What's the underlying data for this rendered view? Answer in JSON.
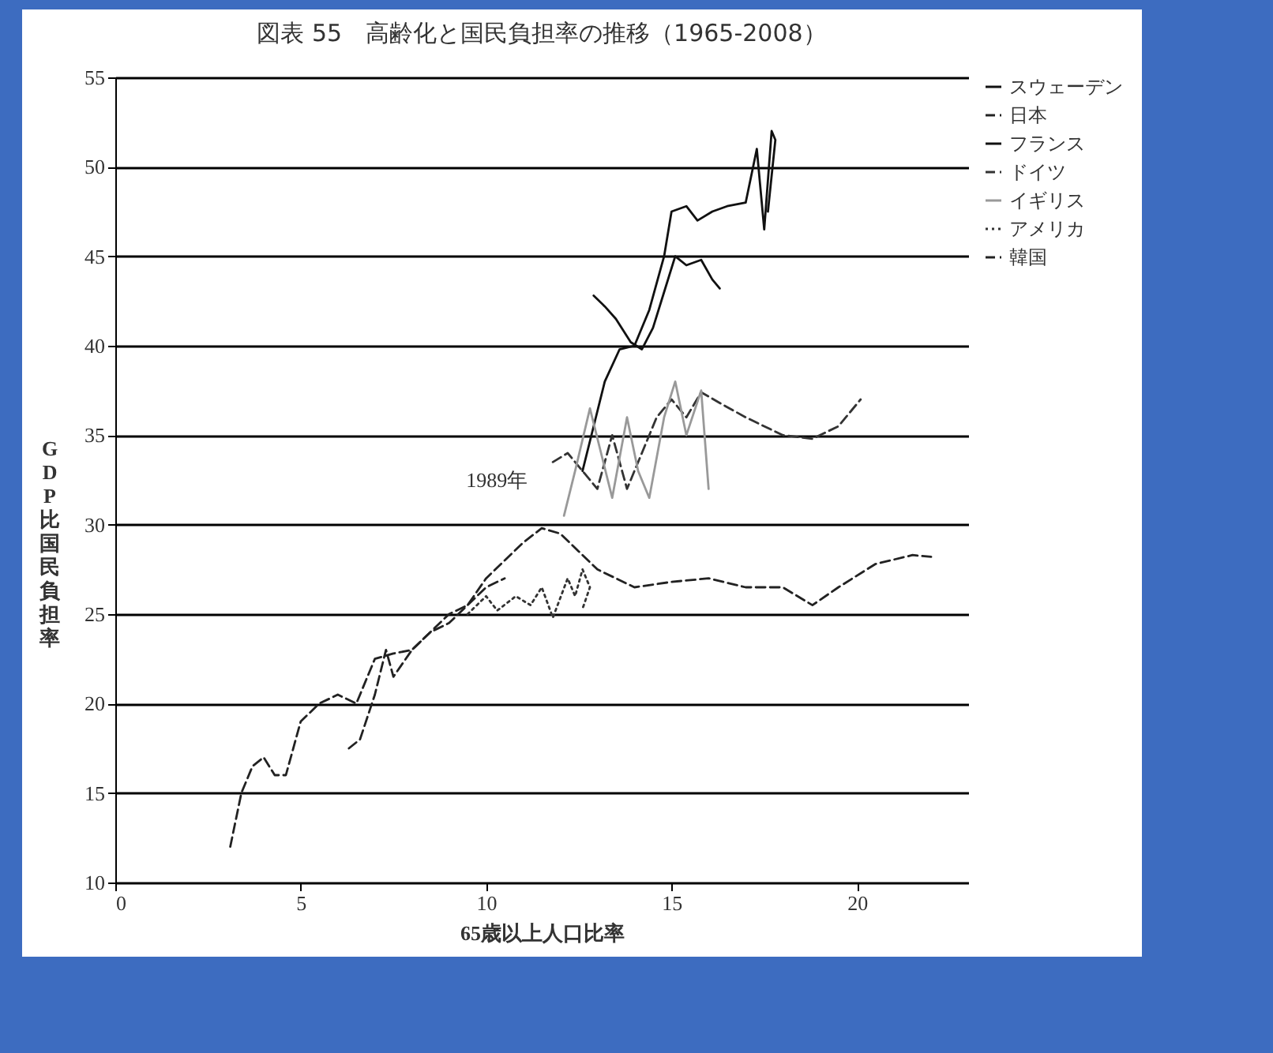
{
  "chart_data": {
    "type": "line",
    "title": "図表 55　高齢化と国民負担率の推移（1965-2008）",
    "xlabel": "65歳以上人口比率",
    "ylabel": "GDP比国民負担率",
    "xlim": [
      0,
      23
    ],
    "xticks": [
      0,
      5,
      10,
      15,
      20
    ],
    "ylim": [
      10,
      55
    ],
    "yticks": [
      10,
      15,
      20,
      25,
      30,
      35,
      40,
      45,
      50,
      55
    ],
    "grid": "y",
    "legend": "right",
    "annotations": [
      {
        "text": "1989年",
        "x": 11.4,
        "y": 30
      }
    ],
    "series": [
      {
        "name": "スウェーデン",
        "color": "#111111",
        "line_style": "solid",
        "x": [
          12.6,
          12.9,
          13.2,
          13.6,
          14.0,
          14.4,
          14.8,
          15.0,
          15.4,
          15.7,
          16.1,
          16.5,
          17.0,
          17.3,
          17.5,
          17.7,
          17.8,
          17.6
        ],
        "values": [
          33,
          35.5,
          38,
          39.8,
          40,
          42,
          45,
          47.5,
          47.8,
          47,
          47.5,
          47.8,
          48,
          51,
          46.5,
          52,
          51.5,
          47.5
        ]
      },
      {
        "name": "日本",
        "color": "#222222",
        "line_style": "dashed",
        "x": [
          6.3,
          6.6,
          7.0,
          7.3,
          7.5,
          8,
          8.5,
          9,
          9.5,
          10,
          10.5,
          11,
          11.5,
          12,
          12.5,
          13,
          14,
          15,
          16,
          17,
          18,
          18.8,
          19.5,
          20.5,
          21.5,
          22
        ],
        "values": [
          17.5,
          18,
          20.5,
          23,
          21.5,
          23,
          24,
          25,
          25.5,
          27,
          28,
          29,
          29.8,
          29.5,
          28.5,
          27.5,
          26.5,
          26.8,
          27,
          26.5,
          26.5,
          25.5,
          26.5,
          27.8,
          28.3,
          28.2
        ]
      },
      {
        "name": "フランス",
        "color": "#111111",
        "line_style": "solid",
        "x": [
          12.9,
          13.2,
          13.5,
          13.9,
          14.2,
          14.5,
          14.8,
          15.1,
          15.4,
          15.8,
          16.1,
          16.3
        ],
        "values": [
          42.8,
          42.2,
          41.5,
          40.2,
          39.8,
          41,
          43,
          45,
          44.5,
          44.8,
          43.7,
          43.2
        ]
      },
      {
        "name": "ドイツ",
        "color": "#333333",
        "line_style": "dashed",
        "x": [
          11.8,
          12.2,
          12.6,
          13,
          13.4,
          13.8,
          14.2,
          14.6,
          15,
          15.4,
          15.8,
          16.3,
          17,
          18,
          18.8,
          19.5,
          20.1
        ],
        "values": [
          33.5,
          34,
          33,
          32,
          35,
          32,
          34,
          36,
          37,
          36,
          37.4,
          36.8,
          36,
          35,
          34.8,
          35.5,
          37
        ]
      },
      {
        "name": "イギリス",
        "color": "#999999",
        "line_style": "solid",
        "x": [
          12.1,
          12.4,
          12.8,
          13.1,
          13.4,
          13.8,
          14.1,
          14.4,
          14.8,
          15.1,
          15.4,
          15.8,
          16.0
        ],
        "values": [
          30.5,
          33,
          36.5,
          34,
          31.5,
          36,
          33,
          31.5,
          36,
          38,
          35,
          37.5,
          32
        ]
      },
      {
        "name": "アメリカ",
        "color": "#333333",
        "line_style": "dotted",
        "x": [
          9.5,
          10,
          10.3,
          10.8,
          11.2,
          11.5,
          11.8,
          12.2,
          12.4,
          12.6,
          12.8,
          12.6
        ],
        "values": [
          25,
          26,
          25.2,
          26,
          25.5,
          26.5,
          24.8,
          27,
          26,
          27.5,
          26.5,
          25.3
        ]
      },
      {
        "name": "韓国",
        "color": "#222222",
        "line_style": "dashed",
        "x": [
          3.1,
          3.4,
          3.7,
          4.0,
          4.3,
          4.6,
          5.0,
          5.5,
          6.0,
          6.5,
          7.0,
          7.5,
          8,
          8.5,
          9,
          9.5,
          10,
          10.5
        ],
        "values": [
          12,
          15,
          16.5,
          17,
          16,
          16,
          19,
          20,
          20.5,
          20,
          22.5,
          22.8,
          23,
          24,
          24.5,
          25.5,
          26.5,
          27
        ]
      }
    ]
  }
}
